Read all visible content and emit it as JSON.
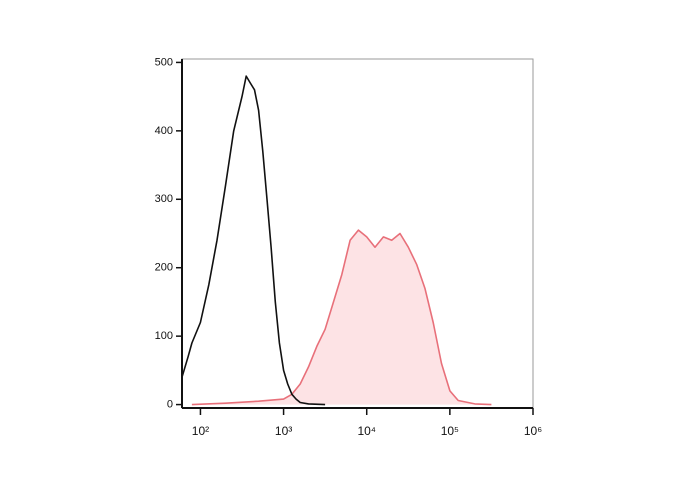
{
  "chart_data": {
    "type": "histogram-overlay",
    "xscale": "log",
    "xlim": [
      60,
      1000000
    ],
    "ylim": [
      -5,
      505
    ],
    "xticks": [
      {
        "value": 100,
        "label": "10²"
      },
      {
        "value": 1000,
        "label": "10³"
      },
      {
        "value": 10000,
        "label": "10⁴"
      },
      {
        "value": 100000,
        "label": "10⁵"
      },
      {
        "value": 1000000,
        "label": "10⁶"
      }
    ],
    "yticks": [
      0,
      100,
      200,
      300,
      400,
      500
    ],
    "series": [
      {
        "color": "#e8707a",
        "fill": "#fde3e5",
        "x": [
          79,
          200,
          501,
          1000,
          1259,
          1585,
          1995,
          2512,
          3162,
          3981,
          5012,
          6310,
          7943,
          10000,
          12589,
          15849,
          19953,
          25119,
          31623,
          39811,
          50119,
          63096,
          79433,
          100000,
          125893,
          199526,
          316228
        ],
        "values": [
          0,
          2,
          5,
          8,
          15,
          30,
          55,
          85,
          110,
          150,
          190,
          240,
          255,
          245,
          230,
          245,
          240,
          250,
          230,
          205,
          170,
          120,
          60,
          20,
          6,
          1,
          0
        ]
      },
      {
        "color": "#111111",
        "x": [
          60,
          71,
          79,
          100,
          126,
          158,
          200,
          251,
          316,
          355,
          398,
          447,
          501,
          562,
          631,
          708,
          794,
          891,
          1000,
          1122,
          1259,
          1413,
          1585,
          1995,
          3162
        ],
        "values": [
          40,
          70,
          90,
          120,
          175,
          240,
          320,
          400,
          450,
          480,
          470,
          460,
          430,
          370,
          300,
          230,
          150,
          90,
          50,
          30,
          15,
          8,
          3,
          1,
          0
        ]
      }
    ]
  }
}
